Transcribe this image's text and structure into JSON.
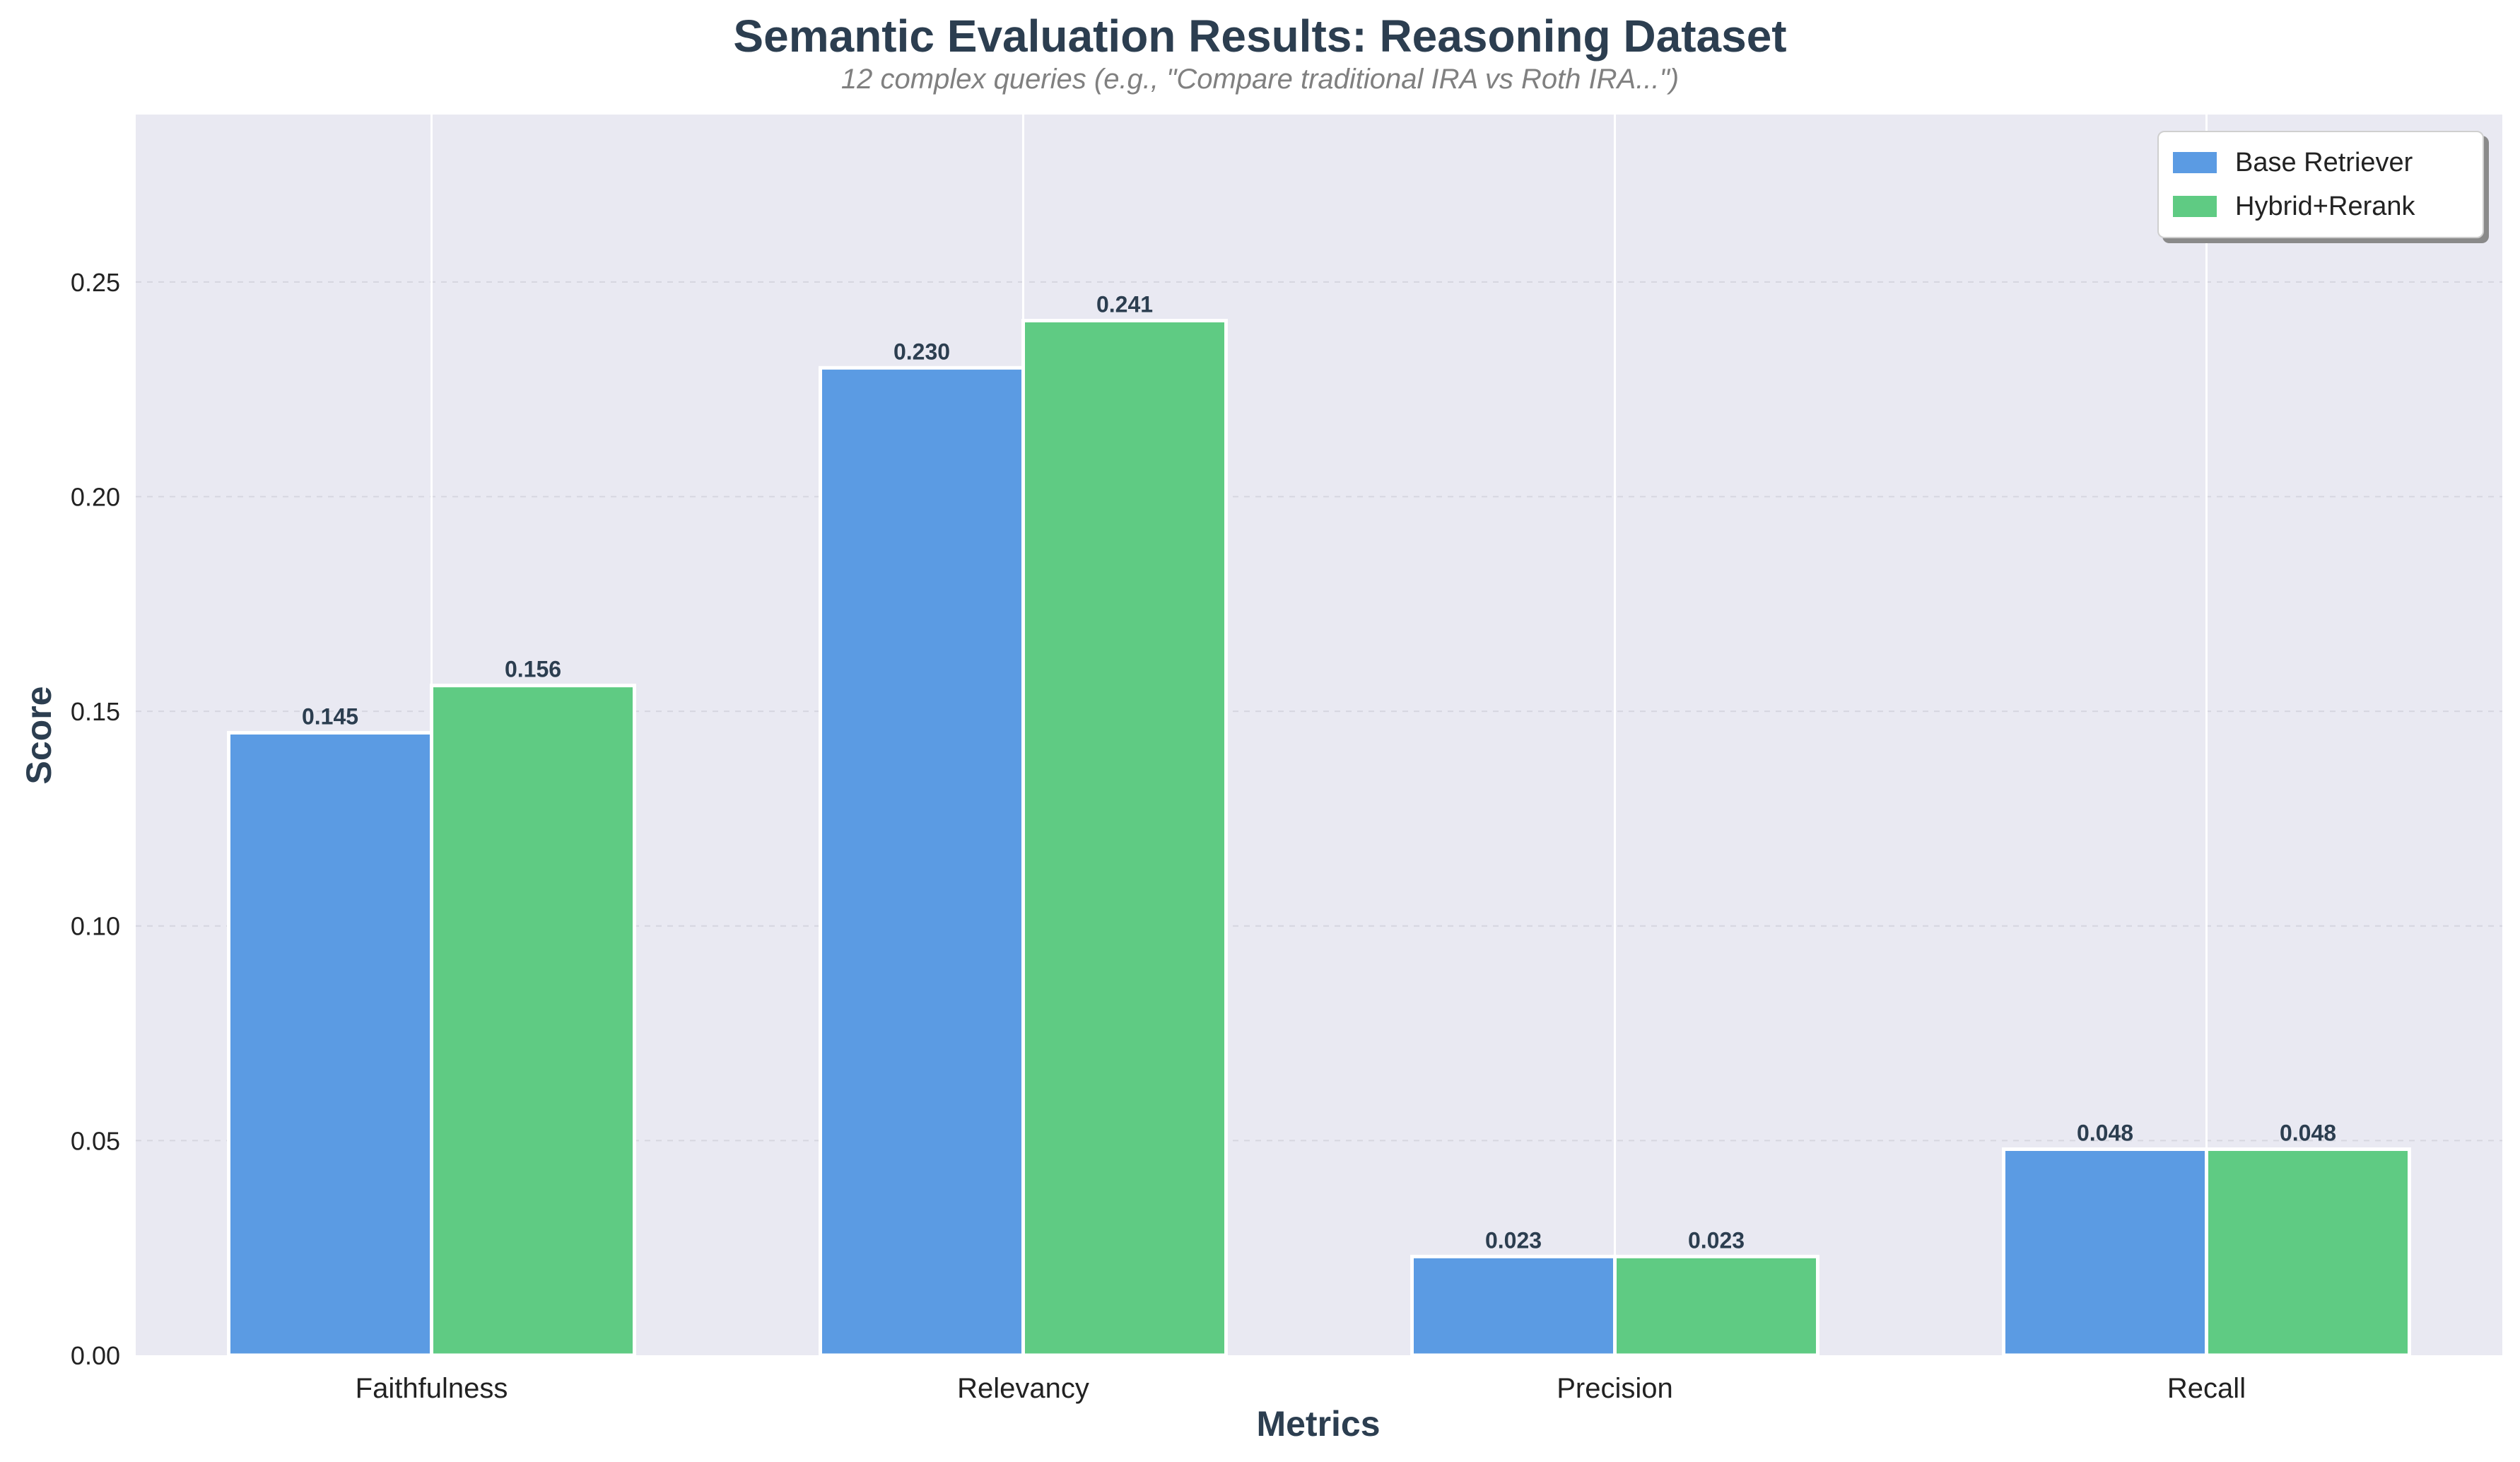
{
  "chart_data": {
    "type": "bar",
    "title": "Semantic Evaluation Results: Reasoning Dataset",
    "subtitle": "12 complex queries (e.g., \"Compare traditional IRA vs Roth IRA...\")",
    "xlabel": "Metrics",
    "ylabel": "Score",
    "categories": [
      "Faithfulness",
      "Relevancy",
      "Precision",
      "Recall"
    ],
    "series": [
      {
        "name": "Base Retriever",
        "color": "#5b9be3",
        "values": [
          0.145,
          0.23,
          0.023,
          0.048
        ],
        "labels": [
          "0.145",
          "0.230",
          "0.023",
          "0.048"
        ]
      },
      {
        "name": "Hybrid+Rerank",
        "color": "#5fcb83",
        "values": [
          0.156,
          0.241,
          0.023,
          0.048
        ],
        "labels": [
          "0.156",
          "0.241",
          "0.023",
          "0.048"
        ]
      }
    ],
    "ylim": [
      0,
      0.289
    ],
    "yticks": [
      "0.00",
      "0.05",
      "0.10",
      "0.15",
      "0.20",
      "0.25"
    ],
    "ytick_values": [
      0,
      0.05,
      0.1,
      0.15,
      0.2,
      0.25
    ],
    "grid": true,
    "legend_position": "top-right",
    "background_color": "#e9e9f2"
  }
}
